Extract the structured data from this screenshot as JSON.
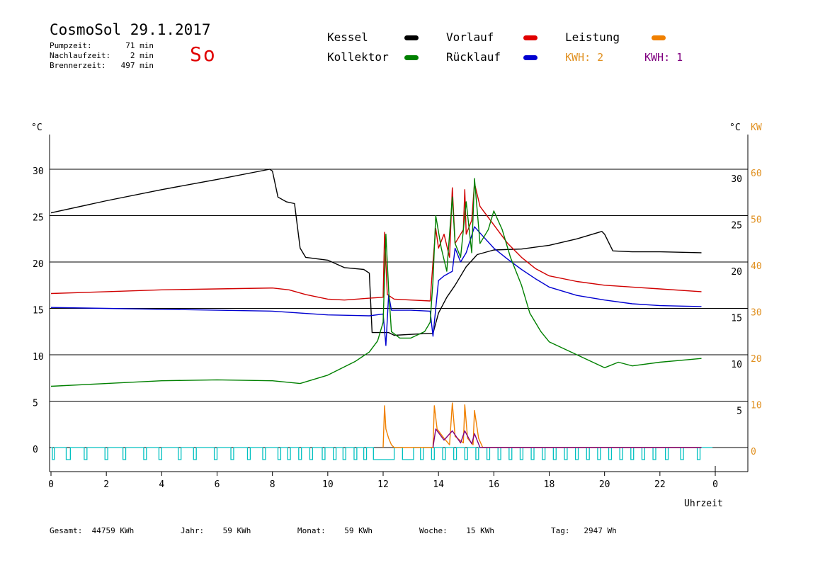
{
  "header": {
    "title": "CosmoSol 29.1.2017",
    "info": [
      {
        "label": "Pumpzeit:",
        "value": "71 min"
      },
      {
        "label": "Nachlaufzeit:",
        "value": "2 min"
      },
      {
        "label": "Brennerzeit:",
        "value": "497 min"
      }
    ],
    "day": "So"
  },
  "legend": [
    {
      "name": "Kessel",
      "color": "#000000"
    },
    {
      "name": "Vorlauf",
      "color": "#e00000"
    },
    {
      "name": "Leistung",
      "color": "#f08000"
    },
    {
      "name": "Kollektor",
      "color": "#008000"
    },
    {
      "name": "Rücklauf",
      "color": "#0000d0"
    }
  ],
  "kwh": [
    {
      "text": "KWH: 2",
      "color": "#e09020"
    },
    {
      "text": "KWH: 1",
      "color": "#800080"
    }
  ],
  "footer": [
    {
      "label": "Gesamt:",
      "value": "44759 KWh"
    },
    {
      "label": "Jahr:",
      "value": "59 KWh"
    },
    {
      "label": "Monat:",
      "value": "59 KWh"
    },
    {
      "label": "Woche:",
      "value": "15 KWh"
    },
    {
      "label": "Tag:",
      "value": "2947 Wh"
    }
  ],
  "chart_data": {
    "type": "line",
    "xlabel": "Uhrzeit",
    "ylabel_left": "°C",
    "ylabel_right": "°C",
    "ylabel_right2": "KW",
    "x_ticks": [
      "0",
      "2",
      "4",
      "6",
      "8",
      "10",
      "12",
      "14",
      "16",
      "18",
      "20",
      "22",
      "0"
    ],
    "xlim": [
      0,
      24
    ],
    "ylim": [
      -2.8,
      35
    ],
    "y_ticks_left": [
      "0",
      "5",
      "10",
      "15",
      "20",
      "25",
      "30"
    ],
    "y_ticks_right": [
      "5",
      "10",
      "15",
      "20",
      "25",
      "30"
    ],
    "y_ticks_kw": [
      "0",
      "10",
      "20",
      "30",
      "40",
      "50",
      "60"
    ],
    "grid": "horizontal",
    "series": [
      {
        "name": "Kessel",
        "color": "#000000",
        "points": [
          [
            0,
            25.3
          ],
          [
            2,
            26.6
          ],
          [
            4,
            27.8
          ],
          [
            6,
            28.9
          ],
          [
            7.9,
            30.0
          ],
          [
            8.0,
            29.8
          ],
          [
            8.2,
            27.0
          ],
          [
            8.5,
            26.5
          ],
          [
            8.8,
            26.3
          ],
          [
            9.0,
            21.5
          ],
          [
            9.2,
            20.5
          ],
          [
            10,
            20.2
          ],
          [
            10.6,
            19.4
          ],
          [
            11.3,
            19.2
          ],
          [
            11.5,
            18.8
          ],
          [
            11.6,
            12.4
          ],
          [
            12.2,
            12.4
          ],
          [
            12.4,
            12.1
          ],
          [
            13.0,
            12.2
          ],
          [
            13.6,
            12.3
          ],
          [
            13.8,
            12.3
          ],
          [
            14.0,
            14.5
          ],
          [
            14.3,
            16.2
          ],
          [
            14.6,
            17.5
          ],
          [
            15.0,
            19.5
          ],
          [
            15.4,
            20.8
          ],
          [
            16.0,
            21.3
          ],
          [
            17.0,
            21.4
          ],
          [
            18.0,
            21.8
          ],
          [
            19.0,
            22.5
          ],
          [
            19.9,
            23.3
          ],
          [
            20.0,
            23.0
          ],
          [
            20.3,
            21.2
          ],
          [
            21,
            21.1
          ],
          [
            22,
            21.1
          ],
          [
            23.5,
            21.0
          ]
        ]
      },
      {
        "name": "Vorlauf",
        "color": "#d00000",
        "points": [
          [
            0,
            16.6
          ],
          [
            2,
            16.8
          ],
          [
            4,
            17.0
          ],
          [
            6,
            17.1
          ],
          [
            8,
            17.2
          ],
          [
            8.6,
            17.0
          ],
          [
            9.2,
            16.5
          ],
          [
            10,
            16.0
          ],
          [
            10.6,
            15.9
          ],
          [
            11.5,
            16.1
          ],
          [
            12.0,
            16.2
          ],
          [
            12.05,
            23.2
          ],
          [
            12.15,
            16.5
          ],
          [
            12.4,
            16.0
          ],
          [
            13.0,
            15.9
          ],
          [
            13.7,
            15.8
          ],
          [
            13.8,
            20.0
          ],
          [
            13.9,
            23.6
          ],
          [
            14.0,
            21.5
          ],
          [
            14.2,
            23.0
          ],
          [
            14.4,
            20.5
          ],
          [
            14.5,
            28.0
          ],
          [
            14.6,
            22.0
          ],
          [
            14.9,
            23.5
          ],
          [
            14.95,
            27.8
          ],
          [
            15.0,
            23.0
          ],
          [
            15.2,
            24.5
          ],
          [
            15.3,
            28.5
          ],
          [
            15.5,
            26.0
          ],
          [
            16.0,
            24.0
          ],
          [
            16.5,
            22.0
          ],
          [
            17.0,
            20.5
          ],
          [
            17.5,
            19.3
          ],
          [
            18.0,
            18.5
          ],
          [
            19,
            17.9
          ],
          [
            20,
            17.5
          ],
          [
            21,
            17.3
          ],
          [
            22,
            17.1
          ],
          [
            23.5,
            16.8
          ]
        ]
      },
      {
        "name": "Rücklauf",
        "color": "#0000d0",
        "points": [
          [
            0,
            15.1
          ],
          [
            2,
            15.0
          ],
          [
            4,
            14.9
          ],
          [
            6,
            14.8
          ],
          [
            8,
            14.7
          ],
          [
            9,
            14.5
          ],
          [
            10,
            14.3
          ],
          [
            11.5,
            14.2
          ],
          [
            12.0,
            14.4
          ],
          [
            12.1,
            11.0
          ],
          [
            12.2,
            16.5
          ],
          [
            12.3,
            14.8
          ],
          [
            13.0,
            14.8
          ],
          [
            13.7,
            14.7
          ],
          [
            13.8,
            12.0
          ],
          [
            14.0,
            18.0
          ],
          [
            14.2,
            18.5
          ],
          [
            14.5,
            19.0
          ],
          [
            14.6,
            21.5
          ],
          [
            14.8,
            20.0
          ],
          [
            15.0,
            21.0
          ],
          [
            15.3,
            23.8
          ],
          [
            15.6,
            22.8
          ],
          [
            16.0,
            21.5
          ],
          [
            16.5,
            20.3
          ],
          [
            17.0,
            19.2
          ],
          [
            17.5,
            18.2
          ],
          [
            18.0,
            17.3
          ],
          [
            19,
            16.4
          ],
          [
            20,
            15.9
          ],
          [
            21,
            15.5
          ],
          [
            22,
            15.3
          ],
          [
            23.5,
            15.2
          ]
        ]
      },
      {
        "name": "Kollektor",
        "color": "#008000",
        "points": [
          [
            0,
            6.6
          ],
          [
            2,
            6.9
          ],
          [
            4,
            7.2
          ],
          [
            6,
            7.3
          ],
          [
            8,
            7.2
          ],
          [
            9,
            6.9
          ],
          [
            10,
            7.8
          ],
          [
            11,
            9.3
          ],
          [
            11.5,
            10.3
          ],
          [
            11.8,
            11.5
          ],
          [
            12.0,
            13.5
          ],
          [
            12.1,
            23.0
          ],
          [
            12.2,
            17.0
          ],
          [
            12.3,
            12.5
          ],
          [
            12.6,
            11.8
          ],
          [
            13.0,
            11.8
          ],
          [
            13.5,
            12.5
          ],
          [
            13.7,
            13.5
          ],
          [
            13.8,
            18.0
          ],
          [
            13.9,
            25.0
          ],
          [
            14.1,
            21.5
          ],
          [
            14.3,
            19.0
          ],
          [
            14.5,
            27.0
          ],
          [
            14.6,
            22.0
          ],
          [
            14.8,
            20.5
          ],
          [
            15.0,
            26.5
          ],
          [
            15.2,
            21.0
          ],
          [
            15.3,
            29.0
          ],
          [
            15.5,
            22.0
          ],
          [
            15.8,
            23.5
          ],
          [
            16.0,
            25.5
          ],
          [
            16.3,
            23.5
          ],
          [
            16.6,
            20.5
          ],
          [
            17.0,
            17.5
          ],
          [
            17.3,
            14.5
          ],
          [
            17.7,
            12.5
          ],
          [
            18,
            11.4
          ],
          [
            19,
            10.0
          ],
          [
            20,
            8.6
          ],
          [
            20.5,
            9.2
          ],
          [
            21,
            8.8
          ],
          [
            22,
            9.2
          ],
          [
            23.5,
            9.6
          ]
        ]
      },
      {
        "name": "Leistung",
        "color": "#f08000",
        "points": [
          [
            12.0,
            0
          ],
          [
            12.05,
            4.5
          ],
          [
            12.1,
            2.0
          ],
          [
            12.2,
            1.0
          ],
          [
            12.3,
            0.3
          ],
          [
            12.4,
            0
          ],
          [
            13.8,
            0
          ],
          [
            13.85,
            4.5
          ],
          [
            13.95,
            2.0
          ],
          [
            14.2,
            1.0
          ],
          [
            14.4,
            0.3
          ],
          [
            14.5,
            4.8
          ],
          [
            14.6,
            1.2
          ],
          [
            14.9,
            0.5
          ],
          [
            14.95,
            4.6
          ],
          [
            15.05,
            1.0
          ],
          [
            15.25,
            0.3
          ],
          [
            15.3,
            4.0
          ],
          [
            15.45,
            1.0
          ],
          [
            15.6,
            0
          ],
          [
            23.5,
            0
          ]
        ]
      },
      {
        "name": "KWH1",
        "color": "#800080",
        "points": [
          [
            13.8,
            0
          ],
          [
            13.9,
            2.0
          ],
          [
            14.2,
            0.8
          ],
          [
            14.5,
            1.8
          ],
          [
            14.8,
            0.5
          ],
          [
            14.95,
            1.8
          ],
          [
            15.2,
            0.4
          ],
          [
            15.3,
            1.5
          ],
          [
            15.5,
            0
          ],
          [
            23.5,
            0
          ]
        ]
      }
    ],
    "pump_pulses": [
      [
        0.05,
        0.12
      ],
      [
        0.55,
        0.7
      ],
      [
        1.2,
        1.3
      ],
      [
        1.95,
        2.05
      ],
      [
        2.6,
        2.7
      ],
      [
        3.35,
        3.45
      ],
      [
        3.9,
        4.0
      ],
      [
        4.6,
        4.7
      ],
      [
        5.15,
        5.25
      ],
      [
        5.9,
        6.0
      ],
      [
        6.5,
        6.6
      ],
      [
        7.1,
        7.2
      ],
      [
        7.65,
        7.75
      ],
      [
        8.2,
        8.3
      ],
      [
        8.55,
        8.65
      ],
      [
        8.95,
        9.05
      ],
      [
        9.35,
        9.45
      ],
      [
        9.8,
        9.9
      ],
      [
        10.2,
        10.3
      ],
      [
        10.55,
        10.65
      ],
      [
        10.95,
        11.05
      ],
      [
        11.3,
        11.4
      ],
      [
        11.65,
        12.4
      ],
      [
        12.7,
        13.1
      ],
      [
        13.35,
        13.45
      ],
      [
        13.75,
        13.85
      ],
      [
        14.15,
        14.25
      ],
      [
        14.55,
        14.65
      ],
      [
        14.95,
        15.05
      ],
      [
        15.35,
        15.45
      ],
      [
        15.75,
        15.85
      ],
      [
        16.15,
        16.25
      ],
      [
        16.55,
        16.65
      ],
      [
        16.95,
        17.05
      ],
      [
        17.35,
        17.45
      ],
      [
        17.75,
        17.85
      ],
      [
        18.15,
        18.25
      ],
      [
        18.55,
        18.65
      ],
      [
        18.95,
        19.05
      ],
      [
        19.35,
        19.45
      ],
      [
        19.75,
        19.85
      ],
      [
        20.15,
        20.25
      ],
      [
        20.55,
        20.65
      ],
      [
        20.95,
        21.05
      ],
      [
        21.35,
        21.45
      ],
      [
        21.75,
        21.85
      ],
      [
        22.2,
        22.3
      ],
      [
        22.75,
        22.85
      ],
      [
        23.35,
        23.45
      ]
    ]
  }
}
